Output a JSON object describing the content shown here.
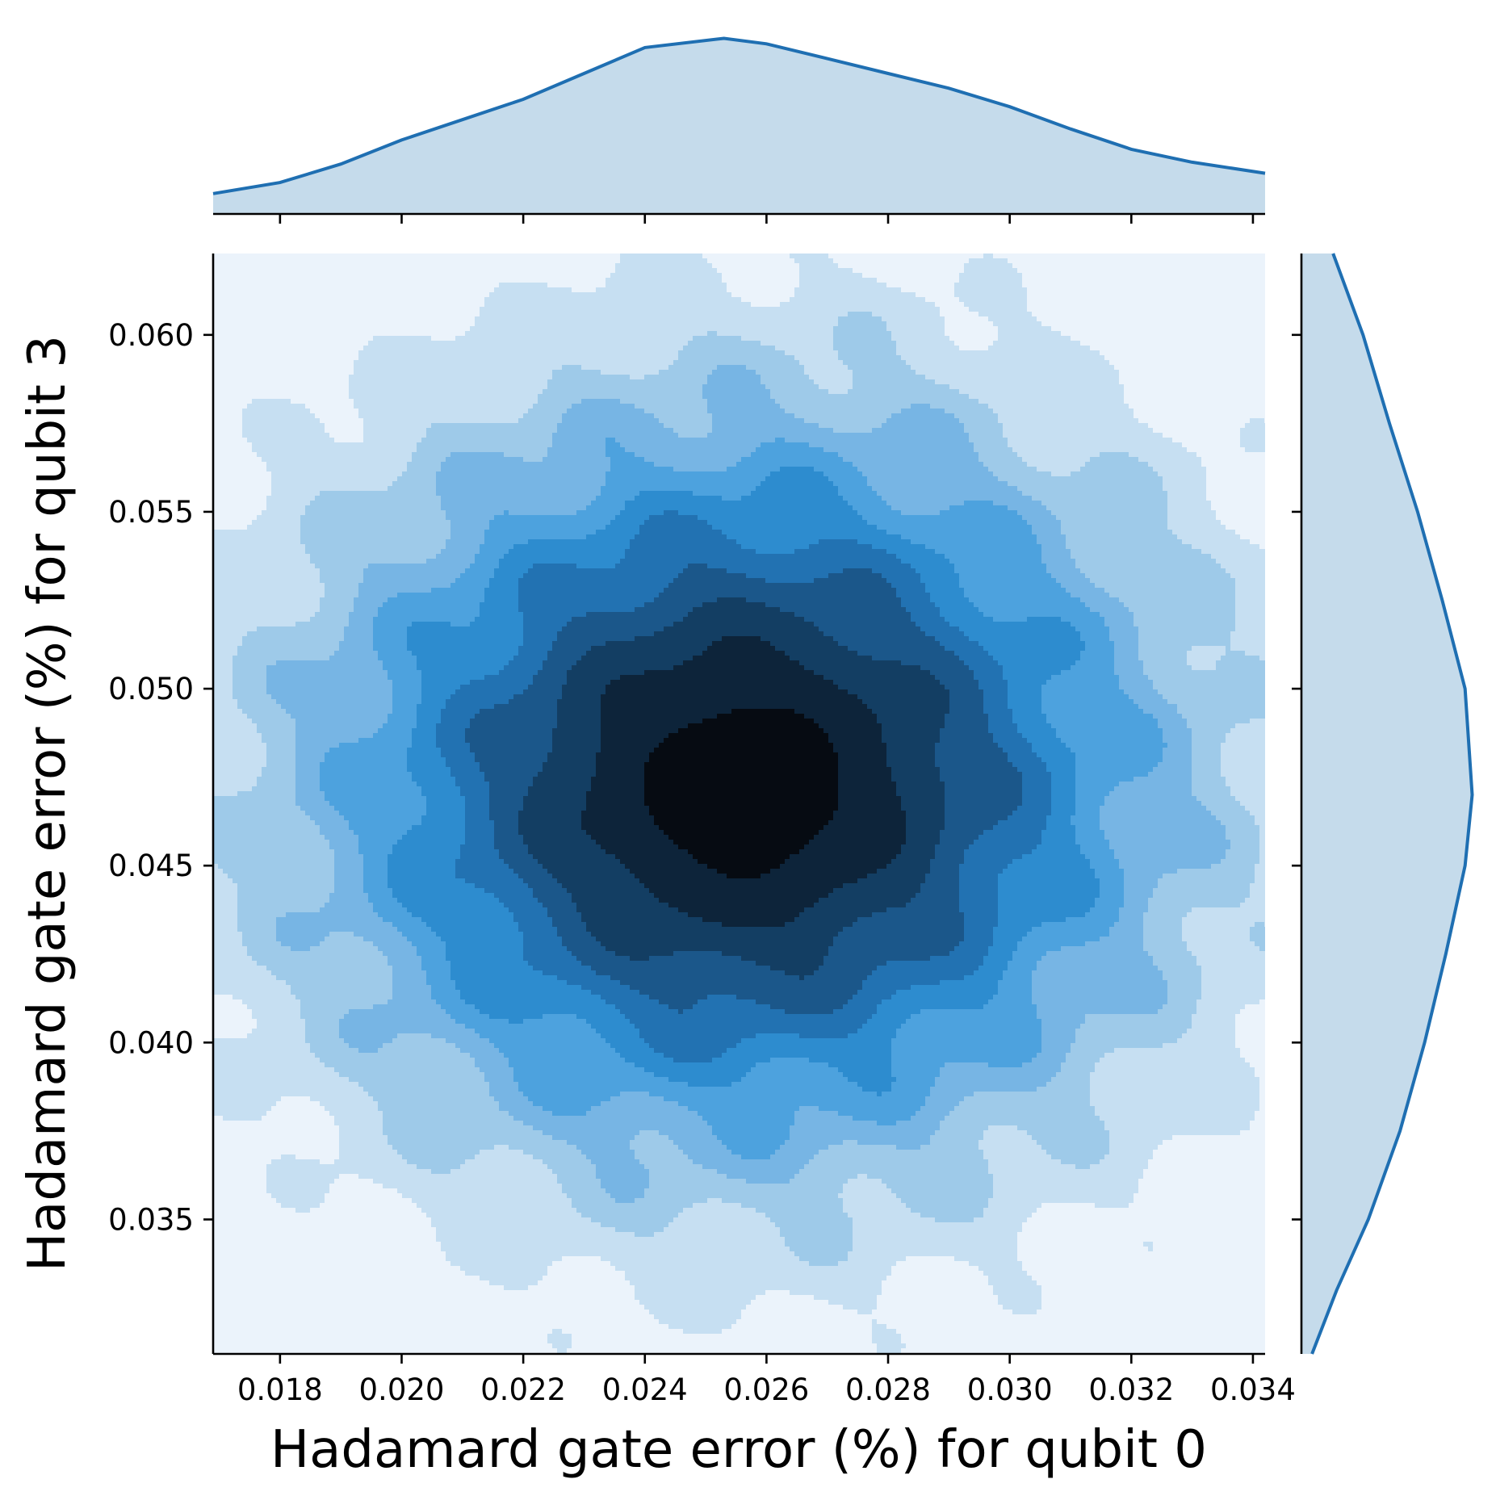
{
  "chart_data": {
    "type": "contour",
    "xlabel": "Hadamard gate error (%) for qubit 0",
    "ylabel": "Hadamard gate error (%) for qubit 3",
    "xlim": [
      0.0169,
      0.0342
    ],
    "ylim": [
      0.0312,
      0.0623
    ],
    "x_ticks": [
      "0.018",
      "0.020",
      "0.022",
      "0.024",
      "0.026",
      "0.028",
      "0.030",
      "0.032",
      "0.034"
    ],
    "y_ticks": [
      "0.035",
      "0.040",
      "0.045",
      "0.050",
      "0.055",
      "0.060"
    ],
    "joint_kde": {
      "center": [
        0.0256,
        0.0472
      ],
      "sd": [
        0.0046,
        0.0068
      ],
      "levels": 10,
      "colors": [
        "#ebf3fb",
        "#c6dff2",
        "#9ecae9",
        "#77b5e4",
        "#4da2de",
        "#2d8ccf",
        "#2272b2",
        "#1b578a",
        "#133e63",
        "#0d243a",
        "#060b12"
      ]
    },
    "marginal_x": {
      "x": [
        0.0169,
        0.018,
        0.019,
        0.02,
        0.021,
        0.022,
        0.023,
        0.024,
        0.0253,
        0.026,
        0.027,
        0.028,
        0.029,
        0.03,
        0.031,
        0.032,
        0.033,
        0.0342
      ],
      "density": [
        0.11,
        0.17,
        0.27,
        0.4,
        0.51,
        0.62,
        0.76,
        0.9,
        0.95,
        0.92,
        0.84,
        0.76,
        0.68,
        0.58,
        0.46,
        0.35,
        0.28,
        0.22
      ]
    },
    "marginal_y": {
      "y": [
        0.0312,
        0.033,
        0.035,
        0.0375,
        0.04,
        0.0425,
        0.045,
        0.047,
        0.05,
        0.0525,
        0.055,
        0.0575,
        0.06,
        0.0623
      ],
      "density": [
        0.06,
        0.2,
        0.38,
        0.56,
        0.7,
        0.82,
        0.93,
        0.97,
        0.93,
        0.8,
        0.66,
        0.5,
        0.35,
        0.18
      ]
    },
    "line_color": "#1f6fb2",
    "fill_color": "#c5dbeb"
  }
}
